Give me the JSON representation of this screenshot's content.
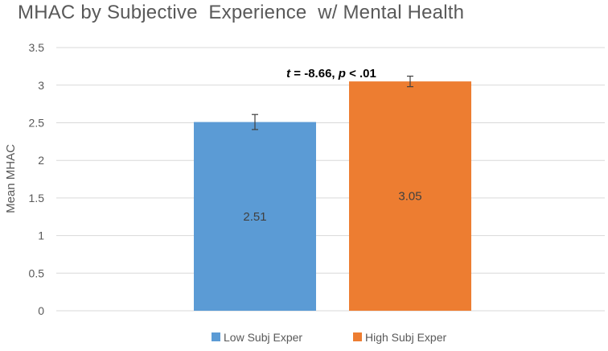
{
  "chart_data": {
    "type": "bar",
    "title": "MHAC by Subjective  Experience  w/ Mental Health",
    "xlabel": "",
    "ylabel": "Mean MHAC",
    "ylim": [
      0,
      3.5
    ],
    "yticks": [
      "0",
      "0.5",
      "1",
      "1.5",
      "2",
      "2.5",
      "3",
      "3.5"
    ],
    "grid": true,
    "legend_position": "bottom",
    "series": [
      {
        "name": "Low Subj Exper",
        "value": 2.51,
        "value_label": "2.51",
        "error": 0.1,
        "color": "#5B9BD5"
      },
      {
        "name": "High Subj Exper",
        "value": 3.05,
        "value_label": "3.05",
        "error": 0.07,
        "color": "#ED7D31"
      }
    ],
    "annotation": {
      "t_symbol": "t",
      "t_text": " = -8.66, ",
      "p_symbol": "p",
      "p_text": " < .01"
    }
  }
}
